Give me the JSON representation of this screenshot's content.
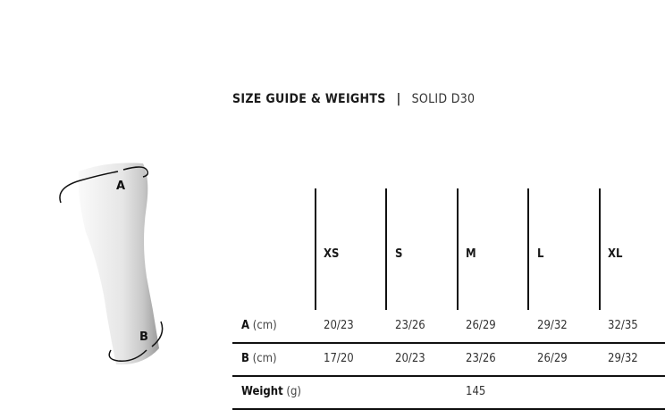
{
  "title": {
    "main": "SIZE GUIDE & WEIGHTS",
    "separator": "|",
    "product": "SOLID D30"
  },
  "illustration": {
    "label_a": "A",
    "label_b": "B"
  },
  "table": {
    "sizes": [
      "XS",
      "S",
      "M",
      "L",
      "XL"
    ],
    "rows": [
      {
        "label": "A",
        "unit": "(cm)",
        "values": [
          "20/23",
          "23/26",
          "26/29",
          "29/32",
          "32/35"
        ]
      },
      {
        "label": "B",
        "unit": "(cm)",
        "values": [
          "17/20",
          "20/23",
          "23/26",
          "26/29",
          "29/32"
        ]
      },
      {
        "label": "Weight",
        "unit": "(g)",
        "value": "145"
      }
    ]
  }
}
